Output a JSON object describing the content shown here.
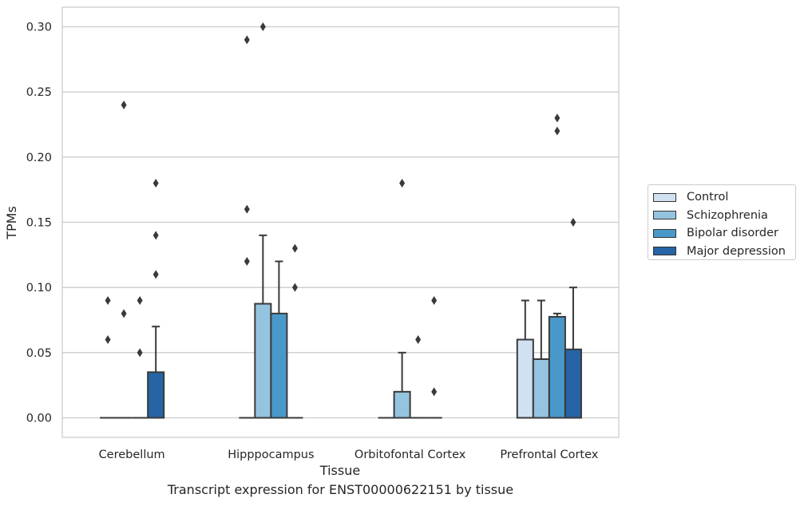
{
  "chart_data": {
    "type": "box",
    "caption": "Transcript expression for ENST00000622151 by tissue",
    "xlabel": "Tissue",
    "ylabel": "TPMs",
    "ylim": [
      -0.015,
      0.315
    ],
    "yticks": [
      "0.00",
      "0.05",
      "0.10",
      "0.15",
      "0.20",
      "0.25",
      "0.30"
    ],
    "ytick_values": [
      0,
      0.05,
      0.1,
      0.15,
      0.2,
      0.25,
      0.3
    ],
    "grid": true,
    "legend_position": "right",
    "categories": [
      "Cerebellum",
      "Hipppocampus",
      "Orbitofontal Cortex",
      "Prefrontal Cortex"
    ],
    "series": [
      {
        "name": "Control",
        "color": "#d0e1f2",
        "boxes": [
          {
            "q1": 0,
            "median": 0,
            "q3": 0,
            "whisker_low": 0,
            "whisker_high": 0,
            "outliers": [
              0.06,
              0.09
            ]
          },
          {
            "q1": 0,
            "median": 0,
            "q3": 0,
            "whisker_low": 0,
            "whisker_high": 0,
            "outliers": [
              0.12,
              0.16,
              0.29
            ]
          },
          {
            "q1": 0,
            "median": 0,
            "q3": 0,
            "whisker_low": 0,
            "whisker_high": 0,
            "outliers": []
          },
          {
            "q1": 0,
            "median": 0,
            "q3": 0.06,
            "whisker_low": 0,
            "whisker_high": 0.09,
            "outliers": []
          }
        ]
      },
      {
        "name": "Schizophrenia",
        "color": "#94c4df",
        "boxes": [
          {
            "q1": 0,
            "median": 0,
            "q3": 0,
            "whisker_low": 0,
            "whisker_high": 0,
            "outliers": [
              0.08,
              0.24
            ]
          },
          {
            "q1": 0,
            "median": 0,
            "q3": 0.0875,
            "whisker_low": 0,
            "whisker_high": 0.14,
            "outliers": [
              0.3
            ]
          },
          {
            "q1": 0,
            "median": 0,
            "q3": 0.02,
            "whisker_low": 0,
            "whisker_high": 0.05,
            "outliers": [
              0.18
            ]
          },
          {
            "q1": 0,
            "median": 0,
            "q3": 0.045,
            "whisker_low": 0,
            "whisker_high": 0.09,
            "outliers": []
          }
        ]
      },
      {
        "name": "Bipolar disorder",
        "color": "#4a98c9",
        "boxes": [
          {
            "q1": 0,
            "median": 0,
            "q3": 0,
            "whisker_low": 0,
            "whisker_high": 0,
            "outliers": [
              0.05,
              0.09
            ]
          },
          {
            "q1": 0,
            "median": 0,
            "q3": 0.08,
            "whisker_low": 0,
            "whisker_high": 0.12,
            "outliers": []
          },
          {
            "q1": 0,
            "median": 0,
            "q3": 0,
            "whisker_low": 0,
            "whisker_high": 0,
            "outliers": [
              0.06
            ]
          },
          {
            "q1": 0,
            "median": 0,
            "q3": 0.0775,
            "whisker_low": 0,
            "whisker_high": 0.08,
            "outliers": [
              0.22,
              0.23
            ]
          }
        ]
      },
      {
        "name": "Major depression",
        "color": "#2664a5",
        "boxes": [
          {
            "q1": 0,
            "median": 0,
            "q3": 0.035,
            "whisker_low": 0,
            "whisker_high": 0.07,
            "outliers": [
              0.11,
              0.14,
              0.18
            ]
          },
          {
            "q1": 0,
            "median": 0,
            "q3": 0,
            "whisker_low": 0,
            "whisker_high": 0,
            "outliers": [
              0.1,
              0.13
            ]
          },
          {
            "q1": 0,
            "median": 0,
            "q3": 0,
            "whisker_low": 0,
            "whisker_high": 0,
            "outliers": [
              0.02,
              0.09
            ]
          },
          {
            "q1": 0,
            "median": 0,
            "q3": 0.0525,
            "whisker_low": 0,
            "whisker_high": 0.1,
            "outliers": [
              0.15
            ]
          }
        ]
      }
    ]
  }
}
